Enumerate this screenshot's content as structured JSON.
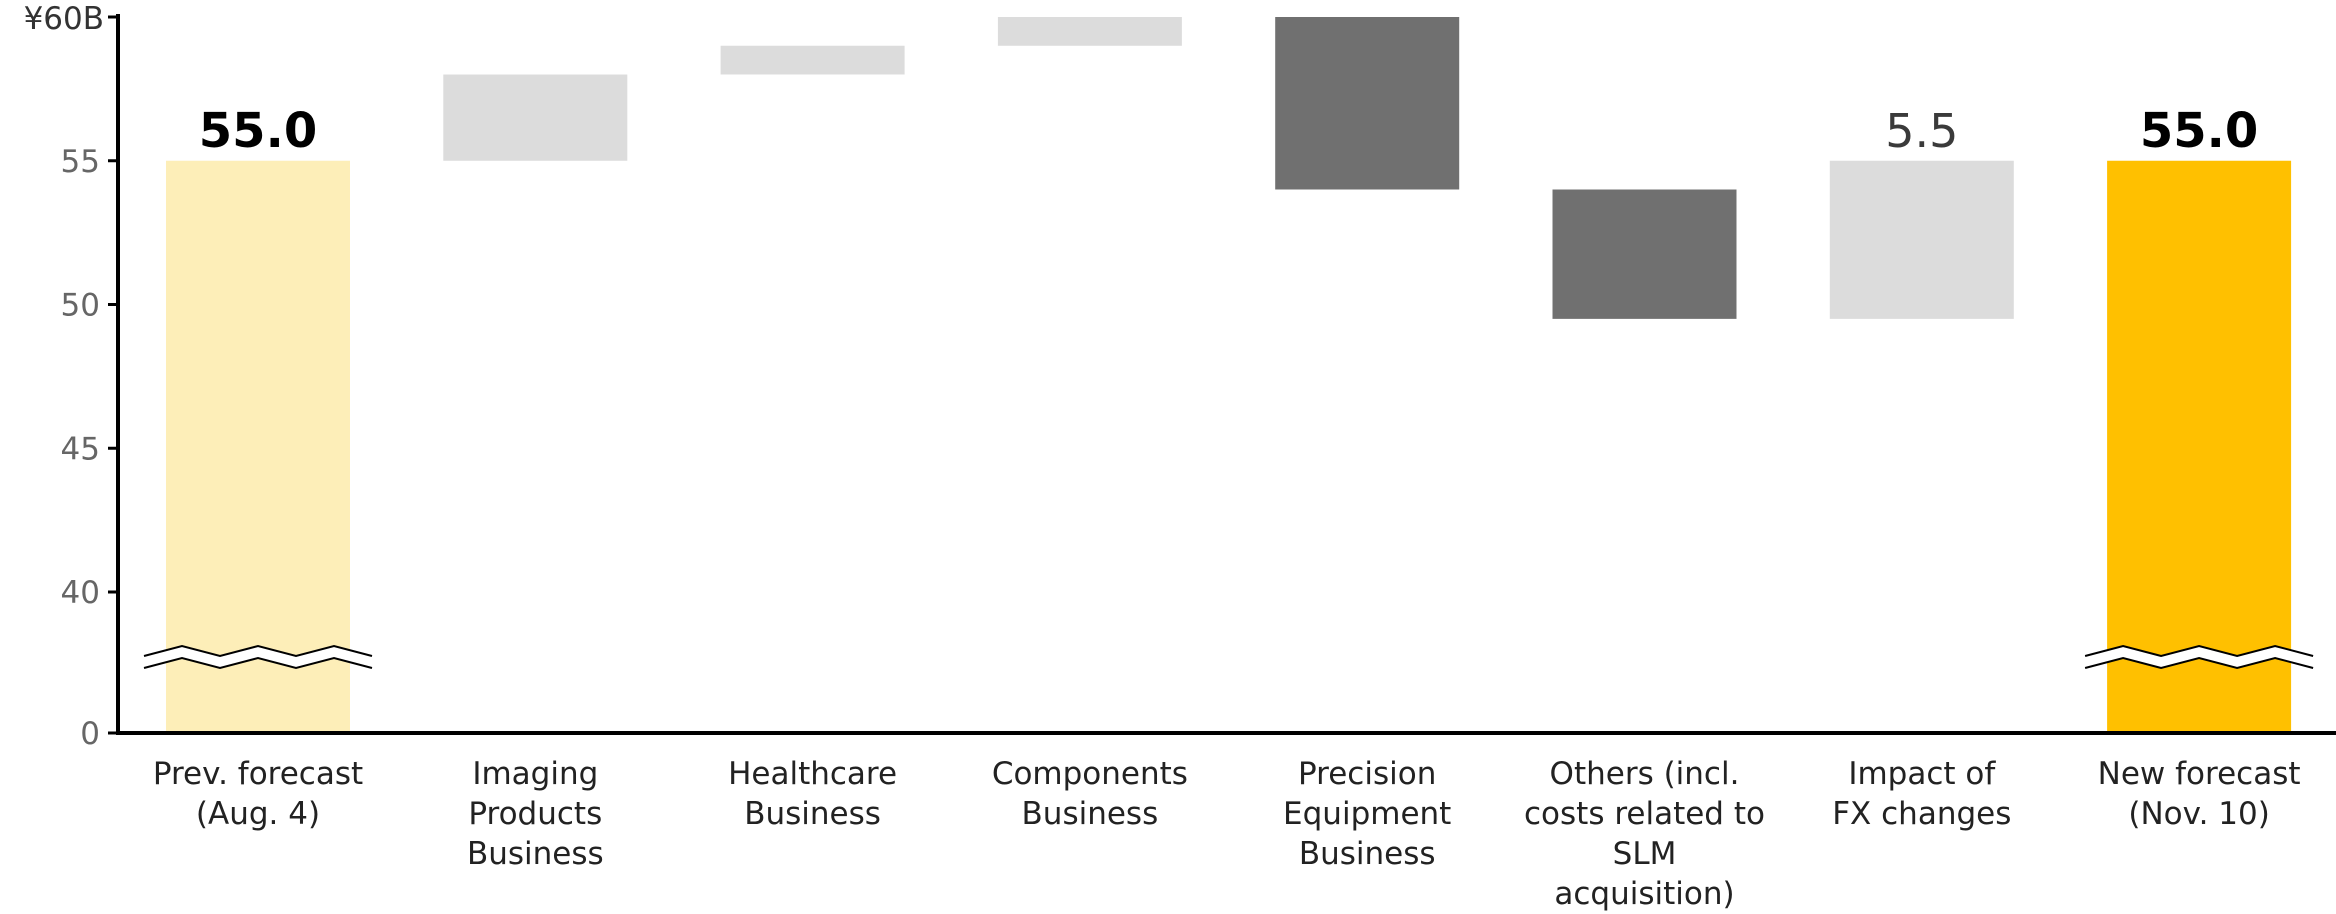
{
  "chart_data": {
    "type": "waterfall",
    "y_unit_label": "¥60B",
    "ylim": [
      0,
      60
    ],
    "axis_break": true,
    "yticks": [
      {
        "value": 60,
        "label": "¥60B"
      },
      {
        "value": 55,
        "label": "55"
      },
      {
        "value": 50,
        "label": "50"
      },
      {
        "value": 45,
        "label": "45"
      },
      {
        "value": 40,
        "label": "40"
      },
      {
        "value": 0,
        "label": "0"
      }
    ],
    "bars": [
      {
        "label_lines": [
          "Prev. forecast",
          "(Aug. 4)"
        ],
        "kind": "total",
        "start": 0,
        "end": 55.0,
        "value_label": "55.0",
        "color": "#FDEEB8",
        "bold": true,
        "axis_break": true
      },
      {
        "label_lines": [
          "Imaging",
          "Products",
          "Business"
        ],
        "kind": "increase",
        "start": 55.0,
        "end": 58.0,
        "value_label": "",
        "color": "#DCDCDC"
      },
      {
        "label_lines": [
          "Healthcare",
          "Business"
        ],
        "kind": "increase",
        "start": 58.0,
        "end": 59.0,
        "value_label": "",
        "color": "#DCDCDC"
      },
      {
        "label_lines": [
          "Components",
          "Business"
        ],
        "kind": "increase",
        "start": 59.0,
        "end": 60.0,
        "value_label": "",
        "color": "#DCDCDC"
      },
      {
        "label_lines": [
          "Precision",
          "Equipment",
          "Business"
        ],
        "kind": "decrease",
        "start": 60.0,
        "end": 54.0,
        "value_label": "",
        "color": "#707070"
      },
      {
        "label_lines": [
          "Others (incl.",
          "costs related to",
          "SLM acquisition)"
        ],
        "kind": "decrease",
        "start": 54.0,
        "end": 49.5,
        "value_label": "",
        "color": "#707070"
      },
      {
        "label_lines": [
          "Impact of",
          "FX changes"
        ],
        "kind": "increase",
        "start": 49.5,
        "end": 55.0,
        "value_label": "5.5",
        "color": "#DCDCDC"
      },
      {
        "label_lines": [
          "New forecast",
          "(Nov. 10)"
        ],
        "kind": "total",
        "start": 0,
        "end": 55.0,
        "value_label": "55.0",
        "color": "#FFC000",
        "bold": true,
        "axis_break": true
      }
    ]
  }
}
